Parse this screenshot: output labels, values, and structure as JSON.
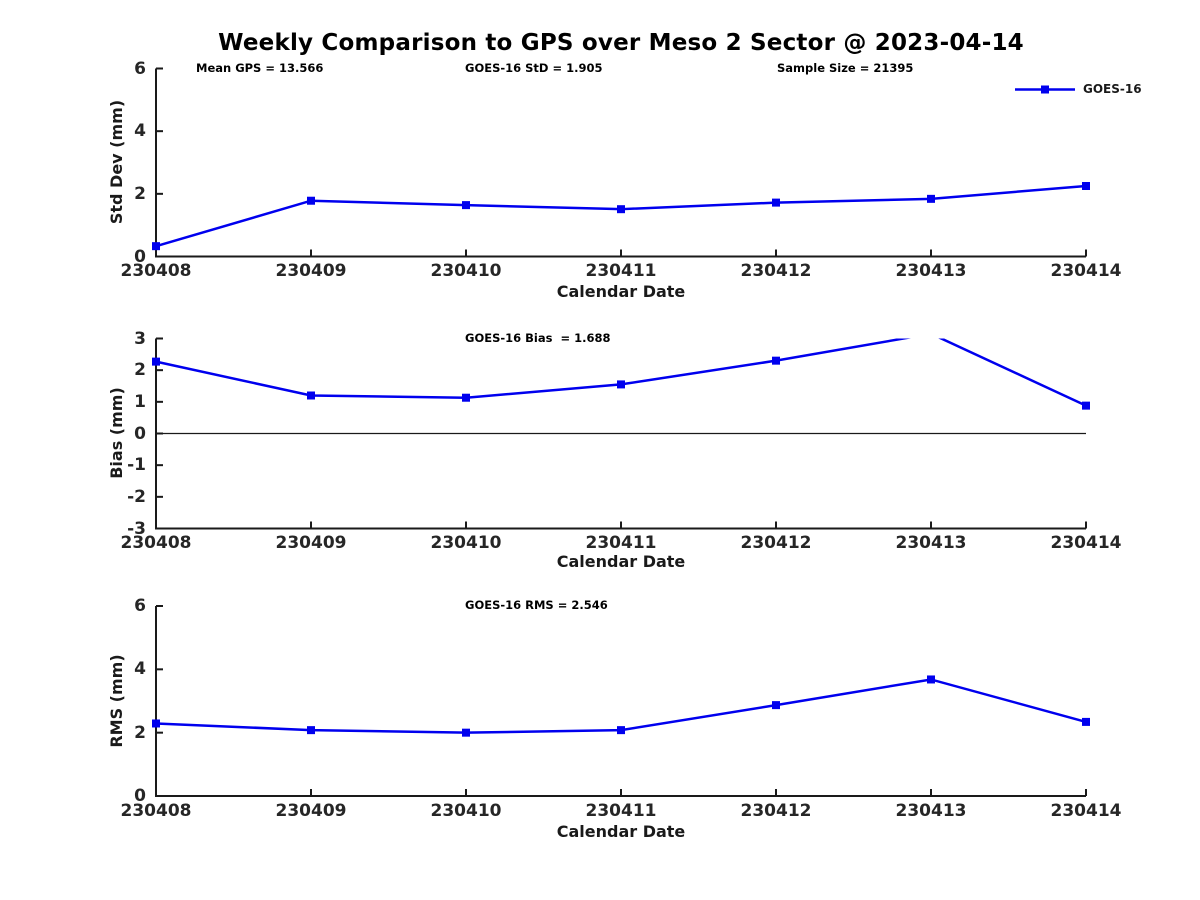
{
  "title": "Weekly Comparison to GPS over Meso 2 Sector @ 2023-04-14",
  "legend": {
    "label": "GOES-16",
    "position": "top-right"
  },
  "colors": {
    "series_line": "#0000EE",
    "axis": "#1a1a1a",
    "tick_label": "#262626",
    "zero_line": "#1a1a1a",
    "background": "#ffffff"
  },
  "chart_data": [
    {
      "type": "line",
      "ylabel": "Std Dev (mm)",
      "xlabel": "Calendar Date",
      "ylim": [
        0,
        6
      ],
      "yticks": [
        0,
        2,
        4,
        6
      ],
      "grid": false,
      "categories": [
        "230408",
        "230409",
        "230410",
        "230411",
        "230412",
        "230413",
        "230414"
      ],
      "series": [
        {
          "name": "GOES-16",
          "values": [
            0.33,
            1.78,
            1.64,
            1.51,
            1.72,
            1.84,
            2.25
          ]
        }
      ],
      "annotations": [
        {
          "text": "Mean GPS = 13.566",
          "x": 196
        },
        {
          "text": "GOES-16 StD = 1.905",
          "x": 465
        },
        {
          "text": "Sample Size = 21395",
          "x": 777
        }
      ]
    },
    {
      "type": "line",
      "ylabel": "Bias (mm)",
      "xlabel": "Calendar Date",
      "ylim": [
        -3,
        3
      ],
      "yticks": [
        -3,
        -2,
        -1,
        0,
        1,
        2,
        3
      ],
      "grid": false,
      "zero_line": true,
      "categories": [
        "230408",
        "230409",
        "230410",
        "230411",
        "230412",
        "230413",
        "230414"
      ],
      "series": [
        {
          "name": "GOES-16",
          "values": [
            2.27,
            1.2,
            1.13,
            1.55,
            2.3,
            3.15,
            0.88
          ]
        }
      ],
      "clip_note": "value at 230413 exceeds ymax 3 so the line is clipped at the axis top",
      "annotations": [
        {
          "text": "GOES-16 Bias  = 1.688",
          "x": 465
        }
      ]
    },
    {
      "type": "line",
      "ylabel": "RMS (mm)",
      "xlabel": "Calendar Date",
      "ylim": [
        0,
        6
      ],
      "yticks": [
        0,
        2,
        4,
        6
      ],
      "grid": false,
      "categories": [
        "230408",
        "230409",
        "230410",
        "230411",
        "230412",
        "230413",
        "230414"
      ],
      "series": [
        {
          "name": "GOES-16",
          "values": [
            2.29,
            2.08,
            2.0,
            2.08,
            2.87,
            3.68,
            2.34
          ]
        }
      ],
      "annotations": [
        {
          "text": "GOES-16 RMS = 2.546",
          "x": 465
        }
      ]
    }
  ]
}
